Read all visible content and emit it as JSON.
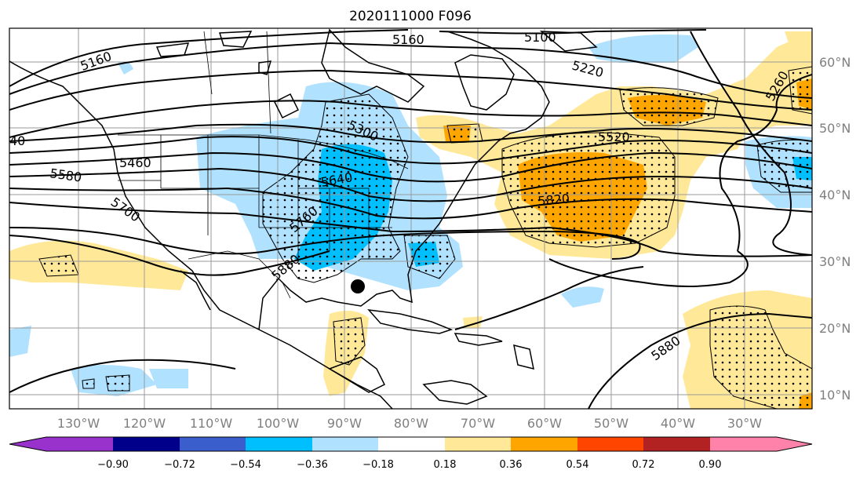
{
  "title": "2020111000 F096",
  "lon_labels": [
    "130°W",
    "120°W",
    "110°W",
    "100°W",
    "90°W",
    "80°W",
    "70°W",
    "60°W",
    "50°W",
    "40°W",
    "30°W"
  ],
  "lat_labels": [
    "60°N",
    "50°N",
    "40°N",
    "30°N",
    "20°N",
    "10°N"
  ],
  "contour_labels": [
    "5160",
    "5100",
    "5160",
    "5220",
    "5260",
    "5300",
    "5460",
    "5520",
    "5580",
    "5640",
    "5700",
    "5760",
    "5820",
    "5880",
    "5880",
    "40"
  ],
  "colorbar": {
    "ticks": [
      "−0.90",
      "−0.72",
      "−0.54",
      "−0.36",
      "−0.18",
      "0.18",
      "0.36",
      "0.54",
      "0.72",
      "0.90"
    ],
    "colors": [
      "#9932CC",
      "#00008B",
      "#3A5FCD",
      "#00BFFF",
      "#B0E2FF",
      "#FFFFFF",
      "#FFE898",
      "#FFA500",
      "#FF4500",
      "#B22222",
      "#FF82AB"
    ]
  },
  "marker": "storm-center-dot"
}
